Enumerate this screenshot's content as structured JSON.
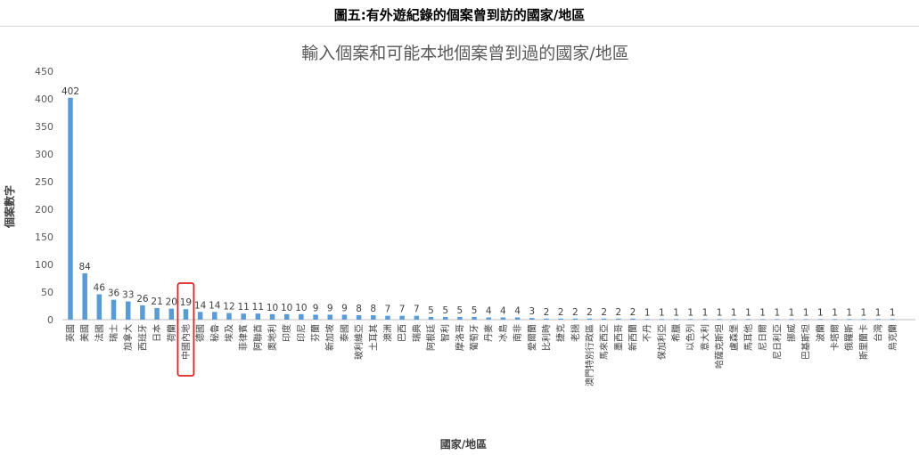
{
  "page": {
    "figure_title": "圖五:有外遊紀錄的個案曾到訪的國家/地區"
  },
  "chart_data": {
    "type": "bar",
    "title": "輸入個案和可能本地個案曾到過的國家/地區",
    "xlabel": "國家/地區",
    "ylabel": "個案數字",
    "ylim": [
      0,
      450
    ],
    "yticks": [
      0,
      50,
      100,
      150,
      200,
      250,
      300,
      350,
      400,
      450
    ],
    "grid": false,
    "legend": "none",
    "bar_color": "#5b9bd5",
    "highlight_color": "#e02020",
    "highlight_category": "中國內地",
    "categories": [
      "英國",
      "美國",
      "法國",
      "瑞士",
      "加拿大",
      "西班牙",
      "日本",
      "荷蘭",
      "中國內地",
      "德國",
      "秘魯",
      "埃及",
      "菲律賓",
      "阿聯酋",
      "奧地利",
      "印度",
      "印尼",
      "芬蘭",
      "新加坡",
      "泰國",
      "玻利維亞",
      "土耳其",
      "澳洲",
      "巴西",
      "瑞典",
      "阿根廷",
      "智利",
      "摩洛哥",
      "葡萄牙",
      "丹麥",
      "冰島",
      "南非",
      "愛爾蘭",
      "比利時",
      "捷克",
      "老撾",
      "澳門特別行政區",
      "馬來西亞",
      "墨西哥",
      "新西蘭",
      "不丹",
      "保加利亞",
      "希臘",
      "以色列",
      "意大利",
      "哈薩克斯坦",
      "盧森堡",
      "馬耳他",
      "尼日爾",
      "尼日利亞",
      "挪威",
      "巴基斯坦",
      "波蘭",
      "卡塔爾",
      "俄羅斯",
      "斯里蘭卡",
      "台灣",
      "烏克蘭"
    ],
    "values": [
      402,
      84,
      46,
      36,
      33,
      26,
      21,
      20,
      19,
      14,
      14,
      12,
      11,
      11,
      10,
      10,
      10,
      9,
      9,
      9,
      8,
      8,
      7,
      7,
      7,
      5,
      5,
      5,
      5,
      4,
      4,
      4,
      3,
      2,
      2,
      2,
      2,
      2,
      2,
      2,
      1,
      1,
      1,
      1,
      1,
      1,
      1,
      1,
      1,
      1,
      1,
      1,
      1,
      1,
      1,
      1,
      1,
      1
    ]
  }
}
